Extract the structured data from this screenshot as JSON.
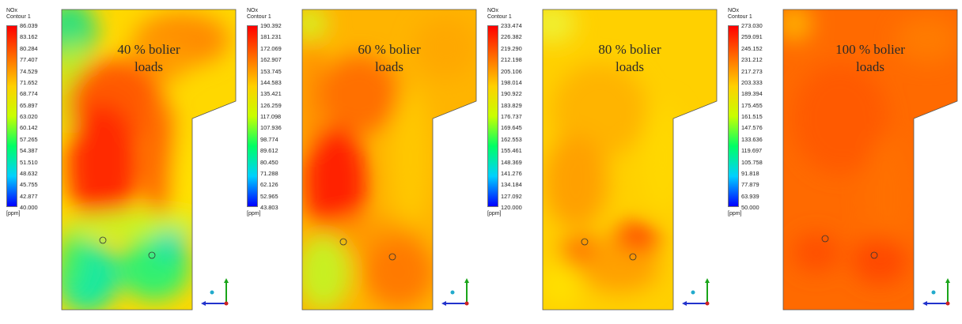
{
  "panels": [
    {
      "legend_title": "NOx",
      "legend_subtitle": "Contour 1",
      "ticks": [
        "86.039",
        "83.162",
        "80.284",
        "77.407",
        "74.529",
        "71.652",
        "68.774",
        "65.897",
        "63.020",
        "60.142",
        "57.265",
        "54.387",
        "51.510",
        "48.632",
        "45.755",
        "42.877",
        "40.000"
      ],
      "unit": "[ppm]",
      "caption_line1": "40 % bolier",
      "caption_line2": "loads",
      "min": 40.0,
      "max": 86.039
    },
    {
      "legend_title": "NOx",
      "legend_subtitle": "Contour 1",
      "ticks": [
        "190.392",
        "181.231",
        "172.069",
        "162.907",
        "153.745",
        "144.583",
        "135.421",
        "126.259",
        "117.098",
        "107.936",
        "98.774",
        "89.612",
        "80.450",
        "71.288",
        "62.126",
        "52.965",
        "43.803"
      ],
      "unit": "[ppm]",
      "caption_line1": "60 % bolier",
      "caption_line2": "loads",
      "min": 43.803,
      "max": 190.392
    },
    {
      "legend_title": "NOx",
      "legend_subtitle": "Contour 1",
      "ticks": [
        "233.474",
        "226.382",
        "219.290",
        "212.198",
        "205.106",
        "198.014",
        "190.922",
        "183.829",
        "176.737",
        "169.645",
        "162.553",
        "155.461",
        "148.369",
        "141.276",
        "134.184",
        "127.092",
        "120.000"
      ],
      "unit": "[ppm]",
      "caption_line1": "80 % bolier",
      "caption_line2": "loads",
      "min": 120.0,
      "max": 233.474
    },
    {
      "legend_title": "NOx",
      "legend_subtitle": "Contour 1",
      "ticks": [
        "273.030",
        "259.091",
        "245.152",
        "231.212",
        "217.273",
        "203.333",
        "189.394",
        "175.455",
        "161.515",
        "147.576",
        "133.636",
        "119.697",
        "105.758",
        "91.818",
        "77.879",
        "63.939",
        "50.000"
      ],
      "unit": "[ppm]",
      "caption_line1": "100 % bolier",
      "caption_line2": "loads",
      "min": 50.0,
      "max": 273.03
    }
  ],
  "colors": {
    "scale": [
      "#ff0000",
      "#ff6a00",
      "#ffd000",
      "#c8ff00",
      "#00ff66",
      "#00d0ff",
      "#0000ff"
    ]
  }
}
